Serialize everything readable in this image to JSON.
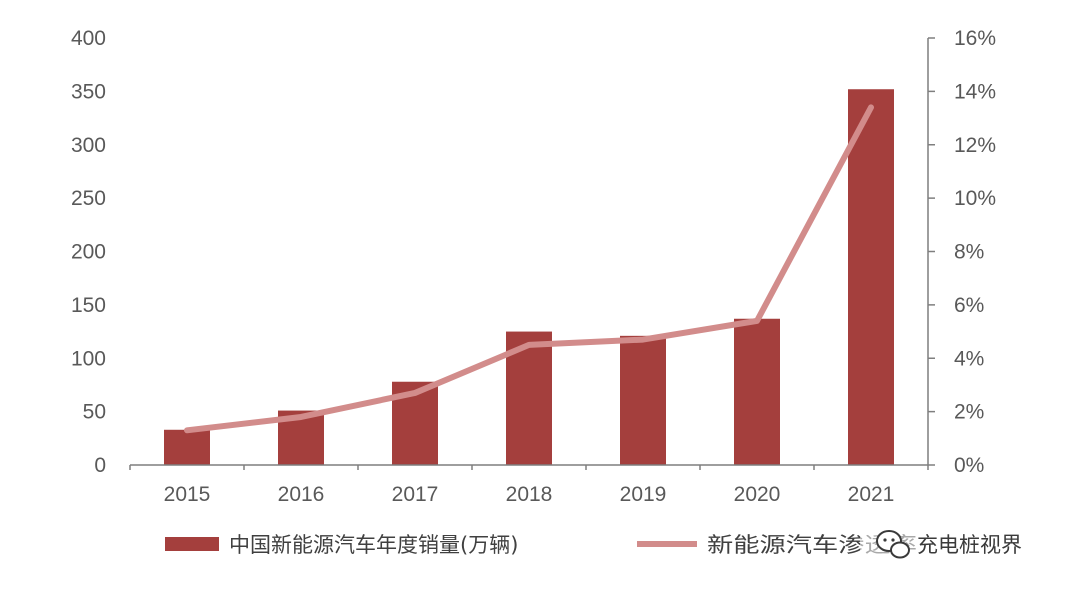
{
  "chart_data": {
    "type": "bar+line",
    "categories": [
      "2015",
      "2016",
      "2017",
      "2018",
      "2019",
      "2020",
      "2021"
    ],
    "series": [
      {
        "name": "中国新能源汽车年度销量(万辆)",
        "type": "bar",
        "axis": "left",
        "values": [
          33,
          51,
          78,
          125,
          121,
          137,
          352
        ]
      },
      {
        "name": "新能源汽车渗透率",
        "type": "line",
        "axis": "right",
        "values": [
          1.3,
          1.8,
          2.7,
          4.5,
          4.7,
          5.4,
          13.4
        ]
      }
    ],
    "y_left": {
      "min": 0,
      "max": 400,
      "ticks": [
        "0",
        "50",
        "100",
        "150",
        "200",
        "250",
        "300",
        "350",
        "400"
      ]
    },
    "y_right": {
      "min": 0,
      "max": 16,
      "ticks": [
        "0%",
        "2%",
        "4%",
        "6%",
        "8%",
        "10%",
        "12%",
        "14%",
        "16%"
      ]
    },
    "legend_position": "bottom",
    "grid": false,
    "colors": {
      "bar": "#a43f3d",
      "line": "#d28c8b",
      "axis": "#7f7f7f"
    }
  },
  "legend": {
    "bar_label": "中国新能源汽车年度销量(万辆)",
    "line_label": "新能源汽车渗透率"
  },
  "watermark": {
    "text": "充电桩视界",
    "icon": "wechat-icon"
  }
}
